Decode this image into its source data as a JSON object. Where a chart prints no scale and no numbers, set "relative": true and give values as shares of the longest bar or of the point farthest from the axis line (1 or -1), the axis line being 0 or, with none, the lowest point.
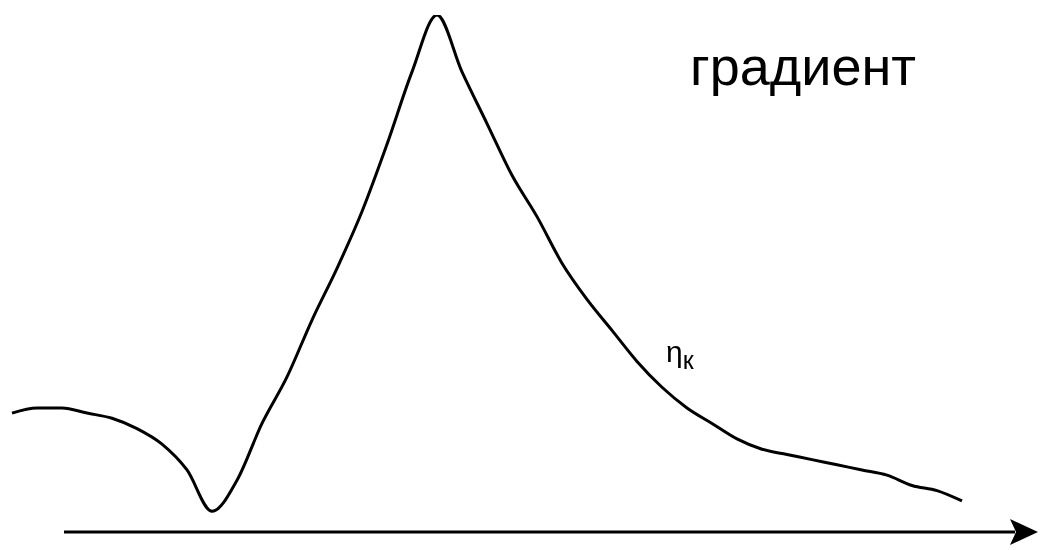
{
  "chart_data": {
    "type": "line",
    "title": "градиент",
    "annotations": [
      "η$_{к}$"
    ],
    "relative": true,
    "marker": "none",
    "color": "#000000",
    "categories": [
      null,
      null,
      null,
      null,
      null,
      null,
      null,
      null,
      null,
      null,
      null,
      null,
      null,
      null,
      null,
      null,
      null,
      null,
      null,
      null,
      null,
      null,
      null,
      null,
      null,
      null,
      null,
      null,
      null,
      null,
      null,
      null,
      null,
      null,
      null,
      null,
      null,
      null,
      null
    ],
    "values": [
      0.23,
      0.24,
      0.24,
      0.23,
      0.22,
      0.2,
      0.17,
      0.12,
      0.04,
      0.1,
      0.21,
      0.3,
      0.41,
      0.51,
      0.62,
      0.75,
      0.89,
      1,
      0.89,
      0.79,
      0.69,
      0.61,
      0.52,
      0.45,
      0.39,
      0.33,
      0.28,
      0.24,
      0.21,
      0.18,
      0.16,
      0.15,
      0.14,
      0.13,
      0.12,
      0.11,
      0.09,
      0.08,
      0.06
    ]
  }
}
